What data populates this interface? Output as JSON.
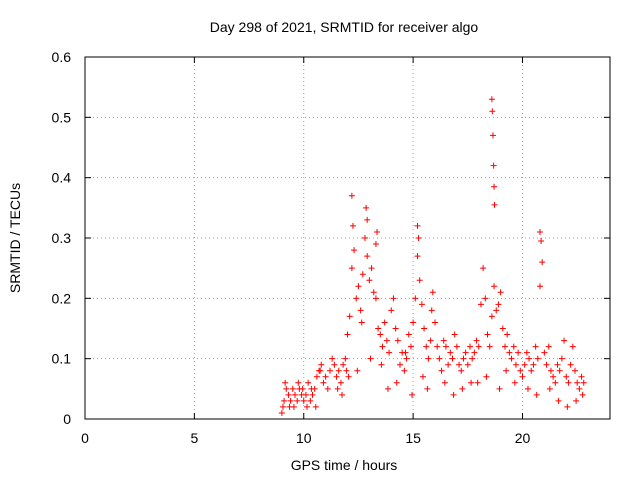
{
  "chart_data": {
    "type": "scatter",
    "title": "Day 298 of 2021, SRMTID for receiver algo",
    "xlabel": "GPS time / hours",
    "ylabel": "SRMTID / TECUs",
    "xlim": [
      0,
      24
    ],
    "ylim": [
      0,
      0.6
    ],
    "xticks": [
      0,
      5,
      10,
      15,
      20
    ],
    "yticks": [
      0,
      0.1,
      0.2,
      0.3,
      0.4,
      0.5,
      0.6
    ],
    "xtick_labels": [
      "0",
      "5",
      "10",
      "15",
      "20"
    ],
    "ytick_labels": [
      "0",
      "0.1",
      "0.2",
      "0.3",
      "0.4",
      "0.5",
      "0.6"
    ],
    "grid": true,
    "marker": "+",
    "color": "#ff0000",
    "series": [
      {
        "name": "SRMTID",
        "x": [
          9.0,
          9.1,
          9.2,
          9.3,
          9.4,
          9.5,
          9.6,
          9.7,
          9.8,
          9.9,
          10.0,
          10.1,
          10.2,
          10.3,
          10.4,
          10.5,
          10.6,
          10.7,
          10.8,
          10.9,
          11.0,
          11.1,
          11.2,
          11.3,
          11.4,
          11.5,
          11.6,
          11.7,
          11.8,
          11.9,
          12.0,
          12.1,
          12.2,
          12.3,
          12.4,
          12.5,
          12.6,
          12.7,
          12.8,
          12.9,
          13.0,
          13.1,
          13.2,
          13.3,
          13.4,
          13.5,
          13.6,
          13.7,
          13.8,
          13.9,
          14.0,
          14.1,
          14.2,
          14.3,
          14.4,
          14.5,
          14.6,
          14.7,
          14.8,
          14.9,
          15.0,
          15.1,
          15.2,
          15.3,
          15.4,
          15.5,
          15.6,
          15.7,
          15.8,
          15.9,
          16.0,
          16.1,
          16.2,
          16.3,
          16.4,
          16.5,
          16.6,
          16.7,
          16.8,
          16.9,
          17.0,
          17.1,
          17.2,
          17.3,
          17.4,
          17.5,
          17.6,
          17.7,
          17.8,
          17.9,
          18.0,
          18.1,
          18.2,
          18.3,
          18.4,
          18.5,
          18.6,
          18.7,
          18.8,
          18.9,
          19.0,
          19.1,
          19.2,
          19.3,
          19.4,
          19.5,
          19.6,
          19.7,
          19.8,
          19.9,
          20.0,
          20.1,
          20.2,
          20.3,
          20.4,
          20.5,
          20.6,
          20.7,
          20.8,
          20.9,
          21.0,
          21.1,
          21.2,
          21.3,
          21.4,
          21.5,
          21.6,
          21.7,
          21.8,
          21.9,
          22.0,
          22.1,
          22.2,
          22.3,
          22.4,
          22.5,
          22.6,
          22.7,
          22.8,
          12.2,
          12.25,
          12.85,
          12.9,
          13.3,
          13.35,
          15.2,
          15.25,
          18.6,
          18.62,
          18.65,
          18.68,
          18.7,
          18.72,
          20.8,
          20.85,
          9.05,
          9.15,
          9.35,
          9.55,
          9.75,
          9.95,
          10.15,
          10.35,
          10.55,
          10.75,
          11.55,
          11.75,
          11.95,
          12.05,
          12.45,
          12.65,
          13.05,
          13.55,
          13.85,
          14.25,
          14.65,
          14.95,
          15.45,
          15.65,
          15.85,
          16.45,
          16.85,
          17.25,
          17.65,
          17.95,
          18.35,
          18.95,
          19.25,
          19.65,
          20.25,
          20.65,
          21.25,
          21.65,
          22.05,
          22.45,
          22.75
        ],
        "y": [
          0.01,
          0.03,
          0.05,
          0.04,
          0.03,
          0.05,
          0.04,
          0.03,
          0.05,
          0.04,
          0.03,
          0.04,
          0.06,
          0.03,
          0.04,
          0.05,
          0.07,
          0.08,
          0.09,
          0.06,
          0.07,
          0.05,
          0.08,
          0.1,
          0.09,
          0.07,
          0.08,
          0.06,
          0.09,
          0.1,
          0.14,
          0.17,
          0.25,
          0.28,
          0.2,
          0.22,
          0.18,
          0.24,
          0.3,
          0.27,
          0.23,
          0.25,
          0.21,
          0.2,
          0.15,
          0.14,
          0.12,
          0.16,
          0.13,
          0.11,
          0.18,
          0.2,
          0.15,
          0.13,
          0.09,
          0.11,
          0.08,
          0.1,
          0.14,
          0.12,
          0.16,
          0.2,
          0.27,
          0.23,
          0.19,
          0.15,
          0.12,
          0.1,
          0.13,
          0.21,
          0.16,
          0.12,
          0.1,
          0.08,
          0.13,
          0.12,
          0.09,
          0.11,
          0.1,
          0.14,
          0.12,
          0.09,
          0.08,
          0.1,
          0.11,
          0.09,
          0.12,
          0.1,
          0.11,
          0.13,
          0.12,
          0.19,
          0.25,
          0.2,
          0.14,
          0.12,
          0.17,
          0.22,
          0.18,
          0.19,
          0.21,
          0.15,
          0.12,
          0.14,
          0.11,
          0.1,
          0.12,
          0.09,
          0.11,
          0.08,
          0.07,
          0.09,
          0.11,
          0.1,
          0.08,
          0.09,
          0.12,
          0.1,
          0.22,
          0.26,
          0.11,
          0.09,
          0.12,
          0.08,
          0.07,
          0.06,
          0.09,
          0.08,
          0.1,
          0.13,
          0.07,
          0.06,
          0.09,
          0.12,
          0.08,
          0.06,
          0.05,
          0.07,
          0.06,
          0.37,
          0.32,
          0.35,
          0.33,
          0.29,
          0.31,
          0.32,
          0.3,
          0.53,
          0.51,
          0.47,
          0.42,
          0.385,
          0.355,
          0.31,
          0.295,
          0.02,
          0.06,
          0.02,
          0.02,
          0.06,
          0.05,
          0.02,
          0.05,
          0.02,
          0.08,
          0.05,
          0.04,
          0.08,
          0.07,
          0.08,
          0.16,
          0.1,
          0.09,
          0.05,
          0.06,
          0.11,
          0.04,
          0.07,
          0.05,
          0.18,
          0.06,
          0.04,
          0.05,
          0.06,
          0.06,
          0.07,
          0.05,
          0.08,
          0.06,
          0.05,
          0.04,
          0.05,
          0.03,
          0.02,
          0.03,
          0.04
        ]
      }
    ]
  }
}
